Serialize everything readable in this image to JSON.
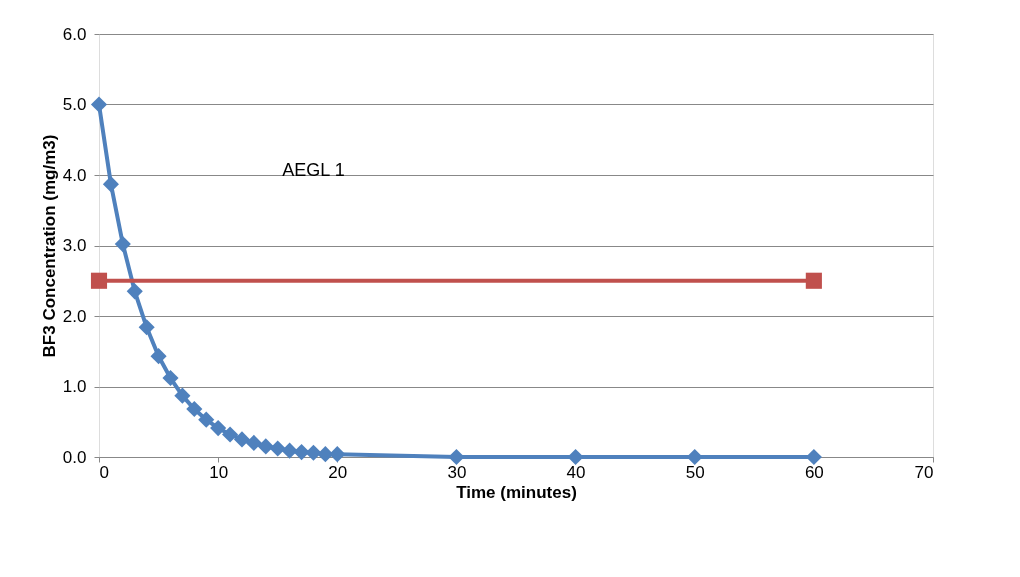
{
  "chart_data": {
    "type": "line",
    "xlabel": "Time (minutes)",
    "ylabel": "BF3 Concentration (mg/m3)",
    "xlim": [
      0,
      70
    ],
    "xticks": [
      0,
      10,
      20,
      30,
      40,
      50,
      60,
      70
    ],
    "ylim": [
      0,
      6
    ],
    "yticks": [
      {
        "value": 0,
        "label": "0.0"
      },
      {
        "value": 1,
        "label": "1.0"
      },
      {
        "value": 2,
        "label": "2.0"
      },
      {
        "value": 3,
        "label": "3.0"
      },
      {
        "value": 4,
        "label": "4.0"
      },
      {
        "value": 5,
        "label": "5.0"
      },
      {
        "value": 6,
        "label": "6.0"
      }
    ],
    "grid": "y",
    "legend": false,
    "series": [
      {
        "color": "#4f81bd",
        "marker": "diamond",
        "x": [
          0,
          1,
          2,
          3,
          4,
          5,
          6,
          7,
          8,
          9,
          10,
          11,
          12,
          13,
          14,
          15,
          16,
          17,
          18,
          19,
          20,
          30,
          40,
          50,
          60
        ],
        "values": [
          5.0,
          3.87,
          3.02,
          2.35,
          1.84,
          1.43,
          1.12,
          0.87,
          0.68,
          0.53,
          0.41,
          0.32,
          0.25,
          0.2,
          0.15,
          0.12,
          0.09,
          0.07,
          0.06,
          0.04,
          0.04,
          0.0,
          0.0,
          0.0,
          0.0
        ]
      },
      {
        "name": "AEGL 1",
        "color": "#c0504d",
        "marker": "square",
        "x": [
          0,
          60
        ],
        "values": [
          2.5,
          2.5
        ]
      }
    ]
  }
}
